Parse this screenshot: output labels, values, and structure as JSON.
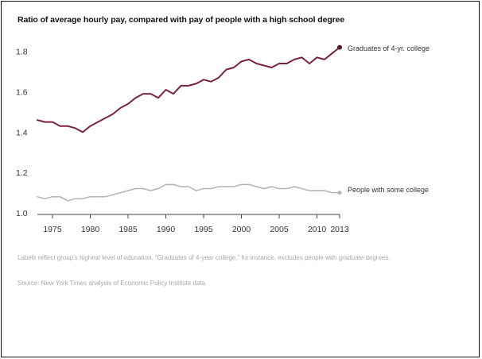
{
  "chart_data": {
    "type": "line",
    "title": "Ratio of average hourly pay, compared with pay of people with a high school degree",
    "xlabel": "",
    "ylabel": "",
    "xlim": [
      1973,
      2013
    ],
    "ylim": [
      1.0,
      1.85
    ],
    "y_ticks": [
      "1.0",
      "1.2",
      "1.4",
      "1.6",
      "1.8"
    ],
    "y_tick_values": [
      1.0,
      1.2,
      1.4,
      1.6,
      1.8
    ],
    "x_ticks": [
      "1975",
      "1980",
      "1985",
      "1990",
      "1995",
      "2000",
      "2005",
      "2010",
      "2013"
    ],
    "x_tick_values": [
      1975,
      1980,
      1985,
      1990,
      1995,
      2000,
      2005,
      2010,
      2013
    ],
    "grid": false,
    "legend": "direct labels at line ends (right)",
    "x": [
      1973,
      1974,
      1975,
      1976,
      1977,
      1978,
      1979,
      1980,
      1981,
      1982,
      1983,
      1984,
      1985,
      1986,
      1987,
      1988,
      1989,
      1990,
      1991,
      1992,
      1993,
      1994,
      1995,
      1996,
      1997,
      1998,
      1999,
      2000,
      2001,
      2002,
      2003,
      2004,
      2005,
      2006,
      2007,
      2008,
      2009,
      2010,
      2011,
      2012,
      2013
    ],
    "series": [
      {
        "name": "Graduates of 4-yr. college",
        "color": "#7b2338",
        "values": [
          1.46,
          1.45,
          1.45,
          1.43,
          1.43,
          1.42,
          1.4,
          1.43,
          1.45,
          1.47,
          1.49,
          1.52,
          1.54,
          1.57,
          1.59,
          1.59,
          1.57,
          1.61,
          1.59,
          1.63,
          1.63,
          1.64,
          1.66,
          1.65,
          1.67,
          1.71,
          1.72,
          1.75,
          1.76,
          1.74,
          1.73,
          1.72,
          1.74,
          1.74,
          1.76,
          1.77,
          1.74,
          1.77,
          1.76,
          1.79,
          1.82
        ]
      },
      {
        "name": "People with some college",
        "color": "#b3b3b3",
        "values": [
          1.08,
          1.07,
          1.08,
          1.08,
          1.06,
          1.07,
          1.07,
          1.08,
          1.08,
          1.08,
          1.09,
          1.1,
          1.11,
          1.12,
          1.12,
          1.11,
          1.12,
          1.14,
          1.14,
          1.13,
          1.13,
          1.11,
          1.12,
          1.12,
          1.13,
          1.13,
          1.13,
          1.14,
          1.14,
          1.13,
          1.12,
          1.13,
          1.12,
          1.12,
          1.13,
          1.12,
          1.11,
          1.11,
          1.11,
          1.1,
          1.1
        ]
      }
    ],
    "note": "Labels reflect group’s highest level of education. “Graduates of 4-year college,” for instance, excludes people with graduate degrees.",
    "source": "Source: New York Times analysis of Economic Policy Institute data"
  }
}
